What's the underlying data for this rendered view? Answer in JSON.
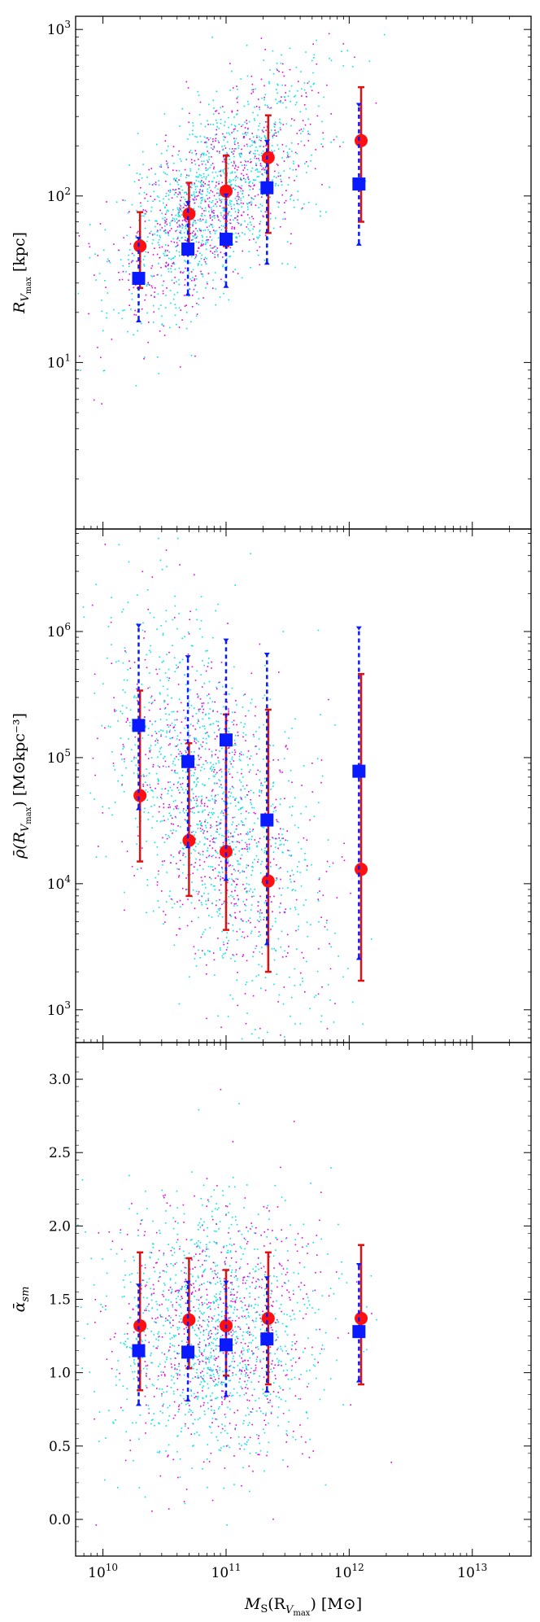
{
  "colors": {
    "cyan_points": "#00e5e5",
    "magenta_points": "#e000e0",
    "red_marker": "#ff1010",
    "red_errorbar": "#dd1111",
    "blue_marker": "#0a1aff",
    "blue_errorbar": "#0a1aff",
    "axis": "#000000"
  },
  "chart_data": [
    {
      "type": "scatter",
      "panel": "top",
      "ylabel_main": "R",
      "ylabel_sub": "V",
      "ylabel_subsub": "max",
      "ylabel_unit": " [kpc]",
      "yscale": "log",
      "xscale": "log",
      "xlim": [
        6000000000.0,
        30000000000000.0
      ],
      "ylim": [
        1.0,
        1200
      ],
      "yticks": [
        {
          "value": 10,
          "base": "10",
          "exp": "1"
        },
        {
          "value": 100,
          "base": "10",
          "exp": "2"
        },
        {
          "value": 1000,
          "base": "10",
          "exp": "3"
        }
      ],
      "series": [
        {
          "marker": "circle",
          "color": "red",
          "points": [
            {
              "x": 20000000000.0,
              "y": 50,
              "lo": 28,
              "hi": 80
            },
            {
              "x": 50000000000.0,
              "y": 78,
              "lo": 45,
              "hi": 120
            },
            {
              "x": 100000000000.0,
              "y": 107,
              "lo": 50,
              "hi": 175
            },
            {
              "x": 220000000000.0,
              "y": 170,
              "lo": 60,
              "hi": 305
            },
            {
              "x": 1250000000000.0,
              "y": 215,
              "lo": 70,
              "hi": 450
            }
          ]
        },
        {
          "marker": "square",
          "color": "blue",
          "points": [
            {
              "x": 19500000000.0,
              "y": 32,
              "lo": 18,
              "hi": 55
            },
            {
              "x": 49000000000.0,
              "y": 48,
              "lo": 26,
              "hi": 90
            },
            {
              "x": 100000000000.0,
              "y": 55,
              "lo": 29,
              "hi": 100
            },
            {
              "x": 215000000000.0,
              "y": 112,
              "lo": 40,
              "hi": 210
            },
            {
              "x": 1200000000000.0,
              "y": 118,
              "lo": 52,
              "hi": 350
            }
          ]
        }
      ],
      "scatter_cloud": {
        "x_center_log": 10.9,
        "y_center_log": 2.0,
        "slope": 0.55,
        "spread": 0.28
      }
    },
    {
      "type": "scatter",
      "panel": "middle",
      "ylabel_main": "ρ̄(R",
      "ylabel_sub": "V",
      "ylabel_subsub": "max",
      "ylabel_unit": ") [M⊙kpc⁻³]",
      "yscale": "log",
      "xscale": "log",
      "xlim": [
        6000000000.0,
        30000000000000.0
      ],
      "ylim": [
        550,
        6500000.0
      ],
      "yticks": [
        {
          "value": 1000,
          "base": "10",
          "exp": "3"
        },
        {
          "value": 10000,
          "base": "10",
          "exp": "4"
        },
        {
          "value": 100000,
          "base": "10",
          "exp": "5"
        },
        {
          "value": 1000000,
          "base": "10",
          "exp": "6"
        }
      ],
      "series": [
        {
          "marker": "circle",
          "color": "red",
          "points": [
            {
              "x": 20000000000.0,
              "y": 50000,
              "lo": 15000,
              "hi": 340000
            },
            {
              "x": 50000000000.0,
              "y": 22000,
              "lo": 8000,
              "hi": 130000
            },
            {
              "x": 100000000000.0,
              "y": 18000,
              "lo": 4300,
              "hi": 220000
            },
            {
              "x": 220000000000.0,
              "y": 10500,
              "lo": 2000,
              "hi": 240000
            },
            {
              "x": 1250000000000.0,
              "y": 13000,
              "lo": 1700,
              "hi": 460000
            }
          ]
        },
        {
          "marker": "square",
          "color": "blue",
          "points": [
            {
              "x": 19500000000.0,
              "y": 180000,
              "lo": 40000,
              "hi": 1100000
            },
            {
              "x": 49000000000.0,
              "y": 93000,
              "lo": 20000,
              "hi": 620000
            },
            {
              "x": 100000000000.0,
              "y": 138000,
              "lo": 11000,
              "hi": 840000
            },
            {
              "x": 215000000000.0,
              "y": 32000,
              "lo": 3400,
              "hi": 650000
            },
            {
              "x": 1200000000000.0,
              "y": 78000,
              "lo": 2600,
              "hi": 1050000
            }
          ]
        }
      ],
      "scatter_cloud": {
        "x_center_log": 10.9,
        "y_center_log": 4.6,
        "slope": -0.9,
        "spread": 0.65
      }
    },
    {
      "type": "scatter",
      "panel": "bottom",
      "ylabel_main": "ᾱ",
      "ylabel_sub": "sm",
      "ylabel_subsub": "",
      "ylabel_unit": "",
      "yscale": "linear",
      "xscale": "log",
      "xlim": [
        6000000000.0,
        30000000000000.0
      ],
      "ylim": [
        -0.25,
        3.25
      ],
      "yticks": [
        {
          "value": 0.0,
          "label": "0.0"
        },
        {
          "value": 0.5,
          "label": "0.5"
        },
        {
          "value": 1.0,
          "label": "1.0"
        },
        {
          "value": 1.5,
          "label": "1.5"
        },
        {
          "value": 2.0,
          "label": "2.0"
        },
        {
          "value": 2.5,
          "label": "2.5"
        },
        {
          "value": 3.0,
          "label": "3.0"
        }
      ],
      "xticks": [
        {
          "value": 10000000000.0,
          "base": "10",
          "exp": "10"
        },
        {
          "value": 100000000000.0,
          "base": "10",
          "exp": "11"
        },
        {
          "value": 1000000000000.0,
          "base": "10",
          "exp": "12"
        },
        {
          "value": 10000000000000.0,
          "base": "10",
          "exp": "13"
        }
      ],
      "xlabel_main": "M",
      "xlabel_sub": "S",
      "xlabel_mid": "(R",
      "xlabel_sub2": "V",
      "xlabel_subsub": "max",
      "xlabel_unit": ") [M⊙]",
      "series": [
        {
          "marker": "circle",
          "color": "red",
          "points": [
            {
              "x": 20000000000.0,
              "y": 1.32,
              "lo": 0.88,
              "hi": 1.82
            },
            {
              "x": 50000000000.0,
              "y": 1.36,
              "lo": 1.03,
              "hi": 1.78
            },
            {
              "x": 100000000000.0,
              "y": 1.32,
              "lo": 0.98,
              "hi": 1.7
            },
            {
              "x": 220000000000.0,
              "y": 1.37,
              "lo": 0.92,
              "hi": 1.82
            },
            {
              "x": 1250000000000.0,
              "y": 1.37,
              "lo": 0.92,
              "hi": 1.87
            }
          ]
        },
        {
          "marker": "square",
          "color": "blue",
          "points": [
            {
              "x": 19500000000.0,
              "y": 1.15,
              "lo": 0.79,
              "hi": 1.59
            },
            {
              "x": 49000000000.0,
              "y": 1.14,
              "lo": 0.82,
              "hi": 1.61
            },
            {
              "x": 100000000000.0,
              "y": 1.19,
              "lo": 0.85,
              "hi": 1.61
            },
            {
              "x": 215000000000.0,
              "y": 1.23,
              "lo": 0.88,
              "hi": 1.64
            },
            {
              "x": 1200000000000.0,
              "y": 1.28,
              "lo": 0.95,
              "hi": 1.73
            }
          ]
        }
      ],
      "scatter_cloud": {
        "x_center_log": 10.9,
        "y_center_log": 1.3,
        "slope": 0.0,
        "spread": 0.45
      }
    }
  ]
}
